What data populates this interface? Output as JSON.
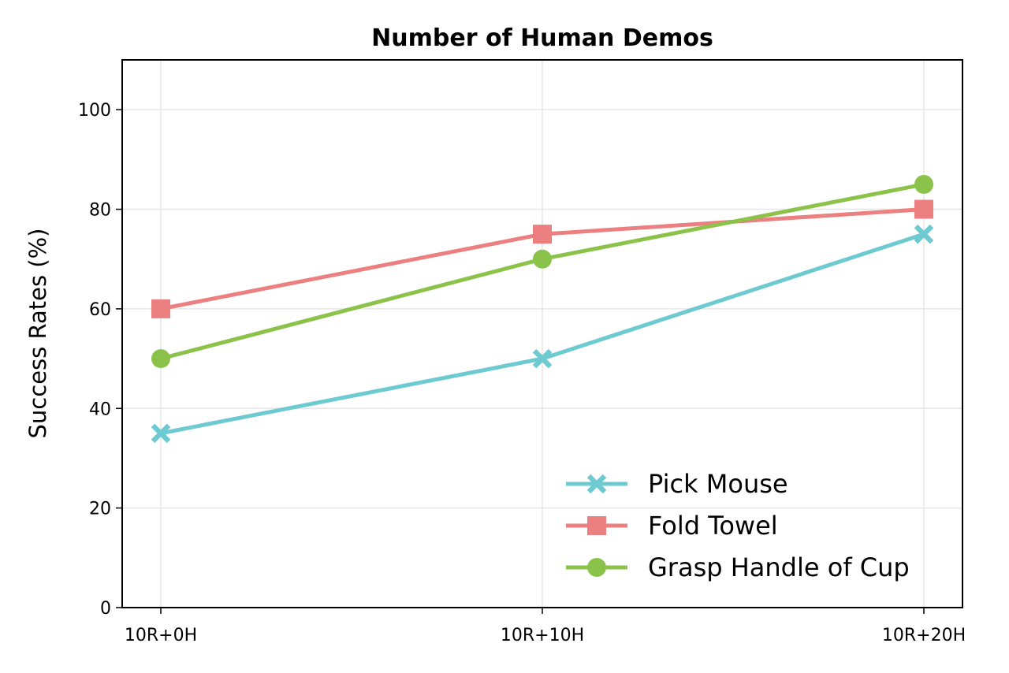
{
  "chart_data": {
    "type": "line",
    "title": "Number of Human Demos",
    "xlabel": "",
    "ylabel": "Success Rates (%)",
    "categories": [
      "10R+0H",
      "10R+10H",
      "10R+20H"
    ],
    "ylim": [
      0,
      110
    ],
    "yticks": [
      "0",
      "20",
      "40",
      "60",
      "80",
      "100"
    ],
    "grid": true,
    "legend_position": "lower-right",
    "series": [
      {
        "name": "Pick Mouse",
        "values": [
          35,
          50,
          75
        ],
        "color": "#6ccad0",
        "marker": "x-cross"
      },
      {
        "name": "Fold Towel",
        "values": [
          60,
          75,
          80
        ],
        "color": "#ec8080",
        "marker": "square"
      },
      {
        "name": "Grasp Handle of Cup",
        "values": [
          50,
          70,
          85
        ],
        "color": "#8bc34a",
        "marker": "circle"
      }
    ]
  }
}
